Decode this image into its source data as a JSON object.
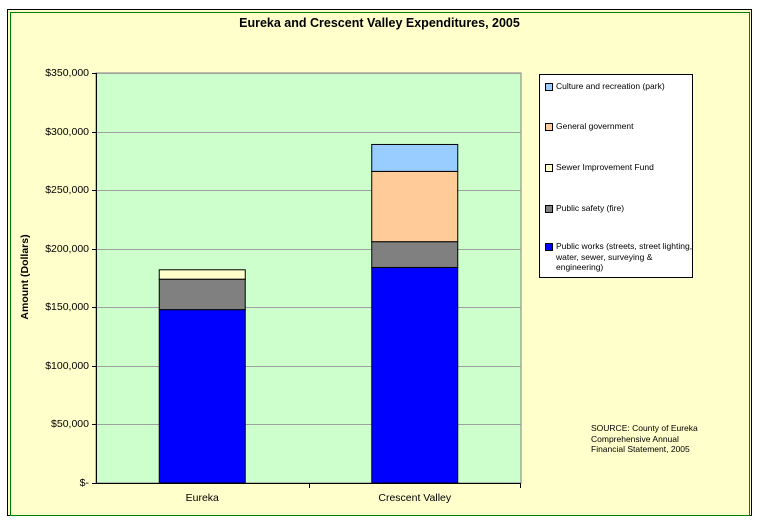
{
  "chart_data": {
    "type": "bar",
    "stacked": true,
    "title": "Eureka and Crescent Valley Expenditures, 2005",
    "ylabel": "Amount (Dollars)",
    "xlabel": "",
    "categories": [
      "Eureka",
      "Crescent Valley"
    ],
    "ylim": [
      0,
      350000
    ],
    "yticks": [
      0,
      50000,
      100000,
      150000,
      200000,
      250000,
      300000,
      350000
    ],
    "ytick_labels": [
      "$-",
      "$50,000",
      "$100,000",
      "$150,000",
      "$200,000",
      "$250,000",
      "$300,000",
      "$350,000"
    ],
    "grid": true,
    "legend_position": "right",
    "series": [
      {
        "name": "Public works (streets, street lighting, water, sewer, surveying & engineering)",
        "color": "#0000ff",
        "values": [
          148000,
          184000
        ]
      },
      {
        "name": "Public safety (fire)",
        "color": "#808080",
        "values": [
          26000,
          22000
        ]
      },
      {
        "name": "Sewer Improvement Fund",
        "color": "#ffffcc",
        "values": [
          8000,
          0
        ]
      },
      {
        "name": "General government",
        "color": "#ffcc99",
        "values": [
          0,
          60000
        ]
      },
      {
        "name": "Culture and recreation (park)",
        "color": "#99ccff",
        "values": [
          0,
          23000
        ]
      }
    ],
    "legend_order": [
      "Culture and recreation (park)",
      "General government",
      "Sewer Improvement Fund",
      "Public safety (fire)",
      "Public works (streets, street lighting, water, sewer, surveying & engineering)"
    ],
    "colors": {
      "plot_background": "#ccffcc",
      "chart_background": "#ffffcc",
      "border": "#008000"
    },
    "annotation": "SOURCE: County of Eureka Comprehensive Annual Financial Statement, 2005"
  }
}
